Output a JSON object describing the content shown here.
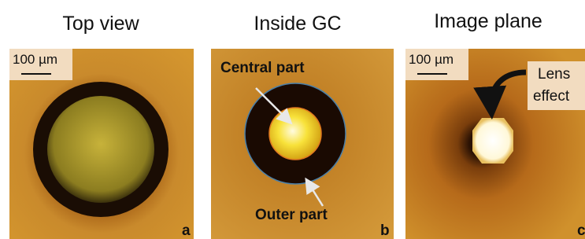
{
  "panels": [
    {
      "title": "Top view",
      "scale_bar": "100 µm",
      "letter": "a"
    },
    {
      "title": "Inside GC",
      "labels": [
        "Central part",
        "Outer part"
      ],
      "letter": "b"
    },
    {
      "title": "Image plane",
      "scale_bar": "100 µm",
      "callout": [
        "Lens",
        "effect"
      ],
      "letter": "c"
    }
  ]
}
